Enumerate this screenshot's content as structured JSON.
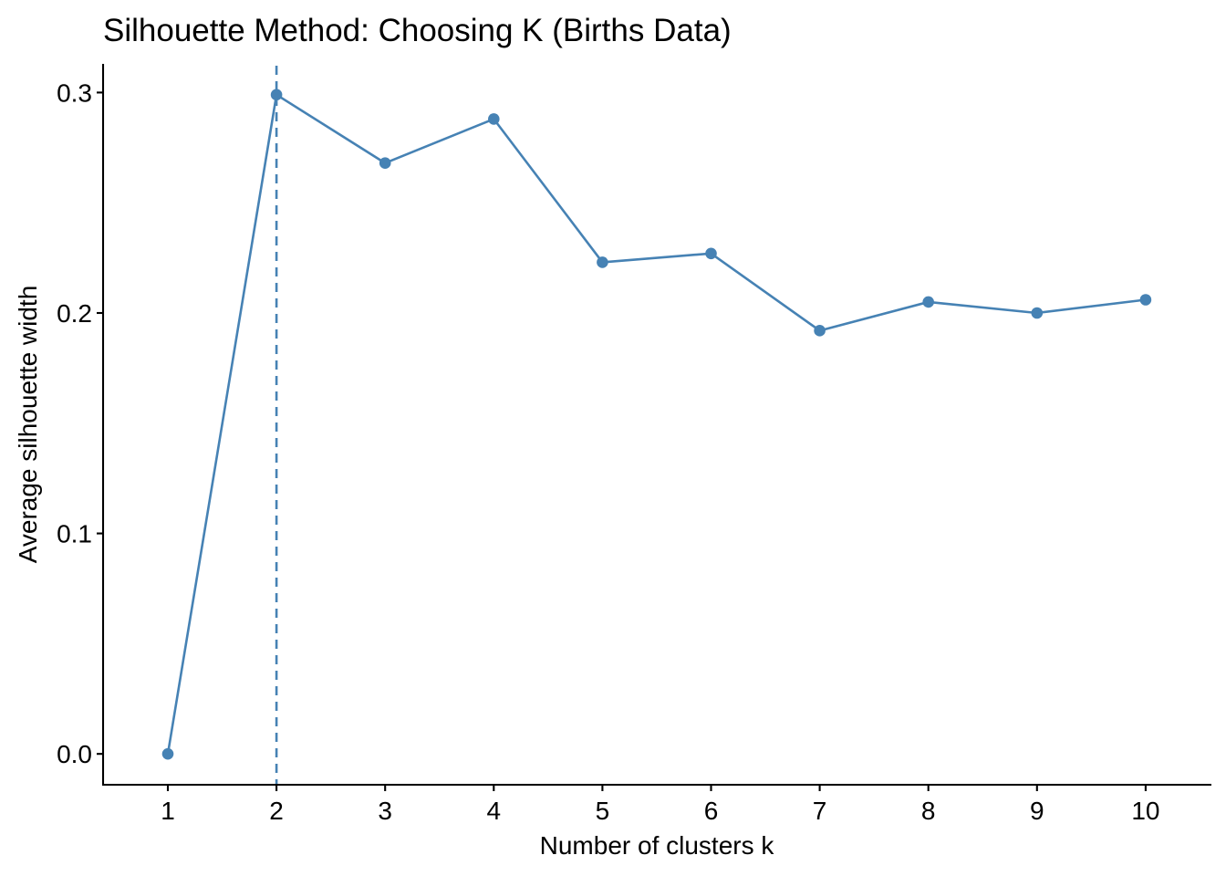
{
  "chart_data": {
    "type": "line",
    "title": "Silhouette Method: Choosing K (Births Data)",
    "xlabel": "Number of clusters k",
    "ylabel": "Average silhouette width",
    "x": [
      "1",
      "2",
      "3",
      "4",
      "5",
      "6",
      "7",
      "8",
      "9",
      "10"
    ],
    "y_ticks": [
      "0.0",
      "0.1",
      "0.2",
      "0.3"
    ],
    "ylim": [
      -0.014,
      0.313
    ],
    "series": [
      {
        "values": [
          0.0,
          0.299,
          0.268,
          0.288,
          0.223,
          0.227,
          0.192,
          0.205,
          0.2,
          0.206
        ],
        "color": "#4682B4"
      }
    ],
    "annotations": [
      {
        "type": "vertical-dashed-line",
        "x": 2,
        "color": "#4682B4"
      }
    ],
    "grid": false,
    "legend": "none"
  }
}
